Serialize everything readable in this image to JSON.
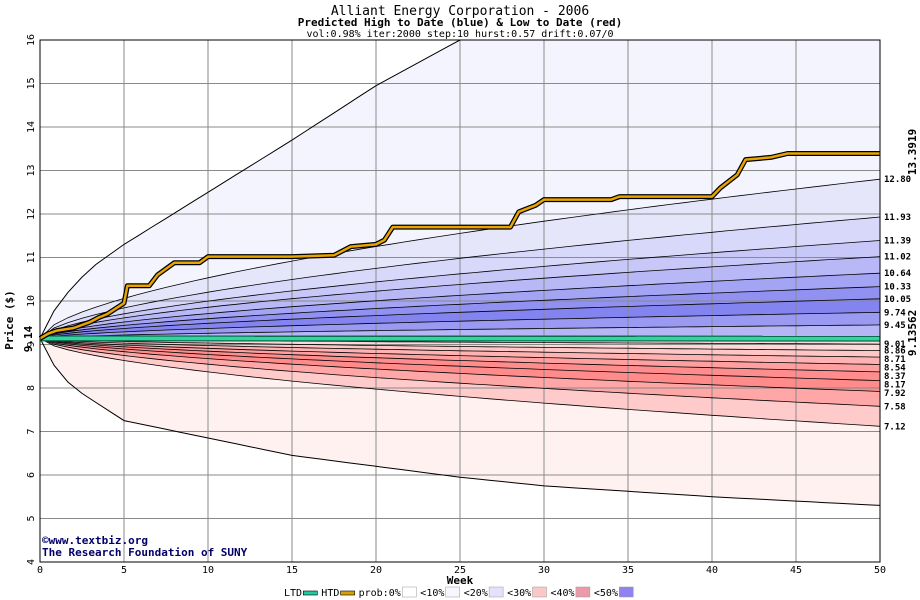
{
  "chart_data": {
    "type": "area",
    "title": "Alliant Energy Corporation - 2006",
    "subtitle": "Predicted High to Date (blue) &  Low to Date (red)",
    "params": "vol:0.98% iter:2000 step:10 hurst:0.57 drift:0.07/0",
    "xlabel": "Week",
    "ylabel": "Price ($)",
    "xlim": [
      0,
      50
    ],
    "ylim": [
      4,
      16
    ],
    "x_ticks": [
      "0",
      "5",
      "10",
      "15",
      "20",
      "25",
      "30",
      "35",
      "40",
      "45",
      "50"
    ],
    "y_ticks": [
      "4",
      "5",
      "6",
      "7",
      "8",
      "9",
      "10",
      "11",
      "12",
      "13",
      "14",
      "15",
      "16"
    ],
    "grid": true,
    "start_price": 9.14,
    "start_price_label": "9.14",
    "high_to_date_final": "13.3919",
    "low_to_date_final": "9.13562",
    "upper_envelope": [
      [
        0,
        9.14
      ],
      [
        1,
        9.9
      ],
      [
        2,
        10.35
      ],
      [
        3,
        10.75
      ],
      [
        5,
        11.3
      ],
      [
        10,
        12.5
      ],
      [
        15,
        13.7
      ],
      [
        20,
        14.95
      ],
      [
        25,
        16.0
      ],
      [
        30,
        16.0
      ],
      [
        50,
        16.0
      ]
    ],
    "lower_envelope": [
      [
        0,
        9.14
      ],
      [
        1,
        8.4
      ],
      [
        2,
        8.0
      ],
      [
        3,
        7.75
      ],
      [
        5,
        7.25
      ],
      [
        10,
        6.85
      ],
      [
        15,
        6.45
      ],
      [
        20,
        6.2
      ],
      [
        25,
        5.95
      ],
      [
        30,
        5.75
      ],
      [
        40,
        5.5
      ],
      [
        50,
        5.3
      ]
    ],
    "high_quantiles": [
      {
        "final": 12.8,
        "label": "12.80"
      },
      {
        "final": 11.93,
        "label": "11.93"
      },
      {
        "final": 11.39,
        "label": "11.39"
      },
      {
        "final": 11.02,
        "label": "11.02"
      },
      {
        "final": 10.64,
        "label": "10.64"
      },
      {
        "final": 10.33,
        "label": "10.33"
      },
      {
        "final": 10.05,
        "label": "10.05"
      },
      {
        "final": 9.74,
        "label": "9.74"
      },
      {
        "final": 9.45,
        "label": "9.45"
      },
      {
        "final": 9.01,
        "label": "9.01"
      }
    ],
    "low_quantiles": [
      {
        "final": 8.86,
        "label": "8.86"
      },
      {
        "final": 8.71,
        "label": "8.71"
      },
      {
        "final": 8.54,
        "label": "8.54"
      },
      {
        "final": 8.37,
        "label": "8.37"
      },
      {
        "final": 8.17,
        "label": "8.17"
      },
      {
        "final": 7.92,
        "label": "7.92"
      },
      {
        "final": 7.58,
        "label": "7.58"
      },
      {
        "final": 7.12,
        "label": "7.12"
      }
    ],
    "htd_series": [
      [
        0,
        9.14
      ],
      [
        0.5,
        9.25
      ],
      [
        1,
        9.32
      ],
      [
        2,
        9.38
      ],
      [
        3,
        9.52
      ],
      [
        3.5,
        9.62
      ],
      [
        4,
        9.7
      ],
      [
        5,
        9.95
      ],
      [
        5.2,
        10.35
      ],
      [
        6.5,
        10.35
      ],
      [
        7,
        10.6
      ],
      [
        8,
        10.88
      ],
      [
        9.5,
        10.88
      ],
      [
        10,
        11.02
      ],
      [
        15,
        11.02
      ],
      [
        17.5,
        11.05
      ],
      [
        18.5,
        11.25
      ],
      [
        20,
        11.3
      ],
      [
        20.5,
        11.4
      ],
      [
        21,
        11.7
      ],
      [
        28,
        11.7
      ],
      [
        28.5,
        12.05
      ],
      [
        29.5,
        12.2
      ],
      [
        30,
        12.33
      ],
      [
        34,
        12.33
      ],
      [
        34.5,
        12.4
      ],
      [
        40,
        12.4
      ],
      [
        40.5,
        12.6
      ],
      [
        41.5,
        12.9
      ],
      [
        42,
        13.25
      ],
      [
        43.5,
        13.3
      ],
      [
        44.5,
        13.39
      ],
      [
        50,
        13.39
      ]
    ],
    "ltd_series": [
      [
        0,
        9.14
      ],
      [
        50,
        9.1356
      ]
    ],
    "credit_lines": [
      "©www.textbiz.org",
      "The Research Foundation of SUNY"
    ],
    "legend": [
      {
        "label": "LTD",
        "color": "#21c9a0"
      },
      {
        "label": "HTD",
        "color": "#d8a300"
      },
      {
        "label": "prob:0%",
        "color": "#ffffff"
      },
      {
        "label": "<10%",
        "color": "#f6f6ff"
      },
      {
        "label": "<20%",
        "color": "#e2e2fb"
      },
      {
        "label": "<30%",
        "color": "#fcc7c7"
      },
      {
        "label": "<40%",
        "color": "#ec9aa8"
      },
      {
        "label": "<50%",
        "color": "#8f83ef"
      }
    ],
    "colors": {
      "plot_bg": "#ffffff",
      "upper_outer": "#f4f4ff",
      "lower_outer": "#fff1ef",
      "blue_fills": [
        "#e6e6fb",
        "#d8d8fa",
        "#c8c8f8",
        "#b8b8f6",
        "#a4a4f4",
        "#9191f2",
        "#8484f0",
        "#9a9af3",
        "#b6b6f6",
        "#dcdcfb"
      ],
      "red_fills": [
        "#ffd8d8",
        "#ffc6c6",
        "#ffb2b2",
        "#ff9f9f",
        "#ff8d8d",
        "#ff8b8b",
        "#ffa6a6",
        "#ffcaca",
        "#ffe2e0"
      ],
      "htd": "#e8a400",
      "ltd": "#2fd6a2",
      "hi_label": "#a07800",
      "lo_label": "#1d8a66",
      "credit": "#000066"
    }
  }
}
